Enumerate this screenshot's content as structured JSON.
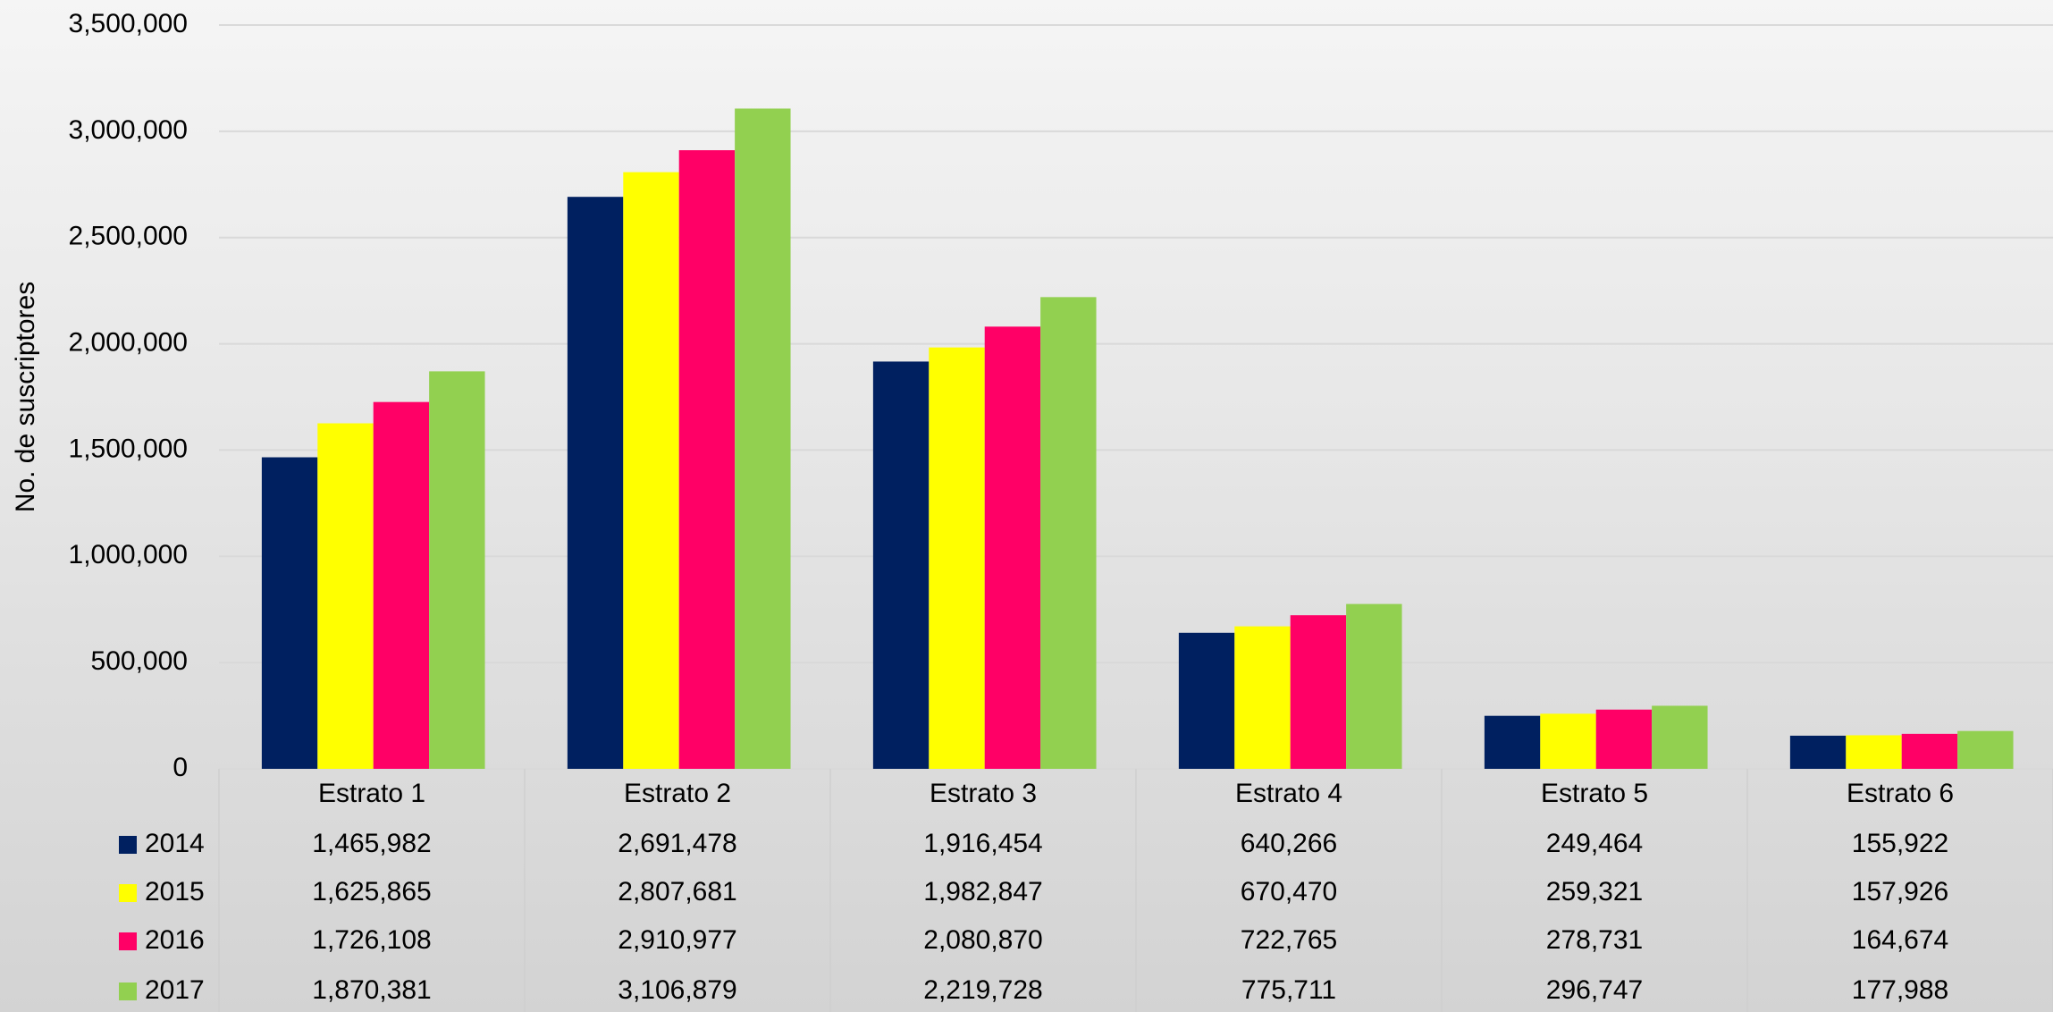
{
  "chart_data": {
    "type": "bar",
    "y_label": "No. de suscriptores",
    "categories": [
      "Estrato 1",
      "Estrato 2",
      "Estrato 3",
      "Estrato 4",
      "Estrato 5",
      "Estrato 6"
    ],
    "series": [
      {
        "name": "2014",
        "color": "#002060",
        "values": [
          1465982,
          2691478,
          1916454,
          640266,
          249464,
          155922
        ],
        "value_labels": [
          "1,465,982",
          "2,691,478",
          "1,916,454",
          "640,266",
          "249,464",
          "155,922"
        ]
      },
      {
        "name": "2015",
        "color": "#ffff00",
        "values": [
          1625865,
          2807681,
          1982847,
          670470,
          259321,
          157926
        ],
        "value_labels": [
          "1,625,865",
          "2,807,681",
          "1,982,847",
          "670,470",
          "259,321",
          "157,926"
        ]
      },
      {
        "name": "2016",
        "color": "#ff0066",
        "values": [
          1726108,
          2910977,
          2080870,
          722765,
          278731,
          164674
        ],
        "value_labels": [
          "1,726,108",
          "2,910,977",
          "2,080,870",
          "722,765",
          "278,731",
          "164,674"
        ]
      },
      {
        "name": "2017",
        "color": "#92d050",
        "values": [
          1870381,
          3106879,
          2219728,
          775711,
          296747,
          177988
        ],
        "value_labels": [
          "1,870,381",
          "3,106,879",
          "2,219,728",
          "775,711",
          "296,747",
          "177,988"
        ]
      }
    ],
    "ylim": [
      0,
      3500000
    ],
    "yticks": [
      0,
      {
        "value": 500000,
        "label": "500,000"
      },
      {
        "value": 1000000,
        "label": "1,000,000"
      },
      {
        "value": 1500000,
        "label": "1,500,000"
      },
      {
        "value": 2000000,
        "label": "2,000,000"
      },
      {
        "value": 2500000,
        "label": "2,500,000"
      },
      {
        "value": 3000000,
        "label": "3,000,000"
      },
      {
        "value": 3500000,
        "label": "3,500,000"
      }
    ],
    "grid": true
  }
}
